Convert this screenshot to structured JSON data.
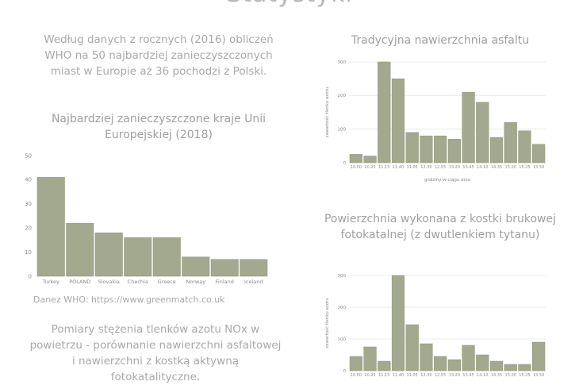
{
  "page": {
    "heading": "Statystyki",
    "intro": "Według danych z rocznych (2016) obliczeń WHO na 50 najbardziej zanieczyszczonych miast w Europie aż 36 pochodzi z Polski.",
    "source": "Danez WHO: https://www.greenmatch.co.uk",
    "comparison_text": "Pomiary stężenia tlenków azotu NOx w powietrzu - porównanie nawierzchni asfaltowej i nawierzchni z kostką aktywną fotokatalityczne."
  },
  "colors": {
    "bar": "#a2a98e",
    "bar_stroke": "#8e957a",
    "grid": "#ececec",
    "tick": "#8a8a8a"
  },
  "chart_data": [
    {
      "id": "countries",
      "type": "bar",
      "title": "Najbardziej zanieczyszczone kraje Unii Europejskiej (2018)",
      "categories": [
        "Turkey",
        "POLAND",
        "Slovakia",
        "Chechia",
        "Greece",
        "Norway",
        "Finland",
        "Iceland"
      ],
      "values": [
        41,
        22,
        18,
        16,
        16,
        8,
        7,
        7
      ],
      "ylim": [
        0,
        50
      ],
      "yticks": [
        0,
        10,
        20,
        30,
        40,
        50
      ],
      "xlabel": "",
      "ylabel": "",
      "grid": false
    },
    {
      "id": "asphalt",
      "type": "bar",
      "title": "Tradycyjna nawierzchnia asfaltu",
      "categories": [
        "10.00",
        "10.25",
        "11.15",
        "11.40",
        "11.05",
        "12.30",
        "12.55",
        "13.20",
        "13.45",
        "14.10",
        "14.35",
        "15.00",
        "15.25",
        "15.50"
      ],
      "values": [
        25,
        20,
        300,
        250,
        90,
        80,
        80,
        70,
        210,
        180,
        75,
        120,
        95,
        55
      ],
      "ylim": [
        0,
        300
      ],
      "yticks": [
        0,
        100,
        200,
        300
      ],
      "xlabel": "godziny w ciągu dnia",
      "ylabel": "zawartość tlenku azotu",
      "grid": true
    },
    {
      "id": "paving",
      "type": "bar",
      "title": "Powierzchnia wykonana z kostki brukowej fotokatalnej (z dwutlenkiem tytanu)",
      "categories": [
        "10.00",
        "10.25",
        "11.15",
        "11.40",
        "11.05",
        "12.30",
        "12.55",
        "13.20",
        "13.45",
        "14.10",
        "14.35",
        "15.00",
        "15.25",
        "15.50"
      ],
      "values": [
        45,
        75,
        30,
        300,
        145,
        85,
        45,
        35,
        80,
        50,
        30,
        20,
        20,
        90
      ],
      "ylim": [
        0,
        300
      ],
      "yticks": [
        0,
        100,
        200,
        300
      ],
      "xlabel": "",
      "ylabel": "zawartość tlenku azotu",
      "grid": true
    }
  ]
}
